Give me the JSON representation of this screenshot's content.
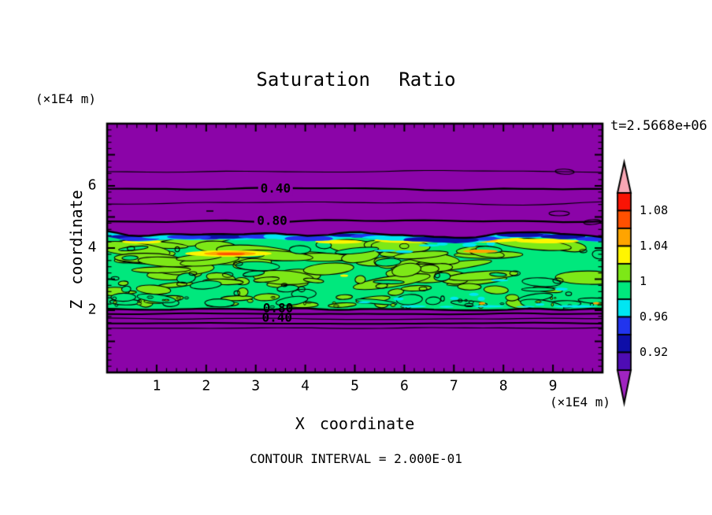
{
  "chart_data": {
    "type": "contour",
    "title": "Saturation Ratio",
    "time_annotation": "t=2.5668e+06",
    "xlabel": "X coordinate",
    "zlabel": "Z coordinate",
    "x_unit_label": "(×1E4 m)",
    "z_unit_label": "(×1E4 m)",
    "xlim": [
      0,
      10
    ],
    "zlim": [
      0,
      8
    ],
    "x_tick_values": [
      1,
      2,
      3,
      4,
      5,
      6,
      7,
      8,
      9
    ],
    "x_tick_labels": [
      "1",
      "2",
      "3",
      "4",
      "5",
      "6",
      "7",
      "8",
      "9"
    ],
    "z_tick_values": [
      2,
      4,
      6
    ],
    "z_tick_labels": [
      "2",
      "4",
      "6"
    ],
    "minor_tick_step": 0.2,
    "contour_interval": 0.2,
    "contour_interval_label": "CONTOUR INTERVAL = 2.000E-01",
    "colorbar": {
      "levels": [
        0.9,
        0.92,
        0.94,
        0.96,
        0.98,
        1.0,
        1.02,
        1.04,
        1.06,
        1.08,
        1.1
      ],
      "segment_colors_top_to_bottom": [
        "#F91405",
        "#FF5000",
        "#FFA400",
        "#FFF500",
        "#7DE817",
        "#00E87D",
        "#00E6F2",
        "#2134EE",
        "#0E0EA8",
        "#4E0CB4"
      ],
      "over_arrow_color": "#F7A6B4",
      "under_arrow_color": "#A024C0",
      "tick_labels": [
        {
          "text": "1.08",
          "value": 1.08
        },
        {
          "text": "1.04",
          "value": 1.04
        },
        {
          "text": "1",
          "value": 1.0
        },
        {
          "text": "0.96",
          "value": 0.96
        },
        {
          "text": "0.92",
          "value": 0.92
        }
      ]
    },
    "field": {
      "background_color": "#8B04A8",
      "base_color": "#00E87D",
      "mottle_color": "#7DE817",
      "cyan_color": "#00E6F2",
      "blue_color": "#2134EE",
      "navy_color": "#0E0EA8",
      "yellow_color": "#FFF500",
      "orange_color": "#FFA400",
      "orangered_color": "#FF5000",
      "line_color": "#000000",
      "cloud_band": {
        "z_top": 4.45,
        "z_bottom": 2.05
      },
      "contour_lines_above_cloud": [
        {
          "value": 0.2,
          "z": 6.46,
          "labeled": false
        },
        {
          "value": 0.4,
          "z": 5.9,
          "labeled": true
        },
        {
          "value": 0.6,
          "z": 5.44,
          "labeled": false
        },
        {
          "value": 0.8,
          "z": 4.86,
          "labeled": true
        }
      ],
      "contour_lines_below_cloud": [
        {
          "value": 0.8,
          "z": 1.89,
          "labeled": true
        },
        {
          "value": 0.6,
          "z": 1.72,
          "labeled": false
        },
        {
          "value": 0.4,
          "z": 1.58,
          "labeled": true
        },
        {
          "value": 0.2,
          "z": 1.43,
          "labeled": false
        }
      ],
      "contour_labels": [
        {
          "text": "0.40",
          "x": 3.4,
          "z": 5.9,
          "background": true
        },
        {
          "text": "0.80",
          "x": 3.33,
          "z": 4.86,
          "background": true
        },
        {
          "text": "0.80",
          "x": 3.45,
          "z": 2.04,
          "background": false
        },
        {
          "text": "0.40",
          "x": 3.43,
          "z": 1.74,
          "background": false
        }
      ]
    }
  }
}
